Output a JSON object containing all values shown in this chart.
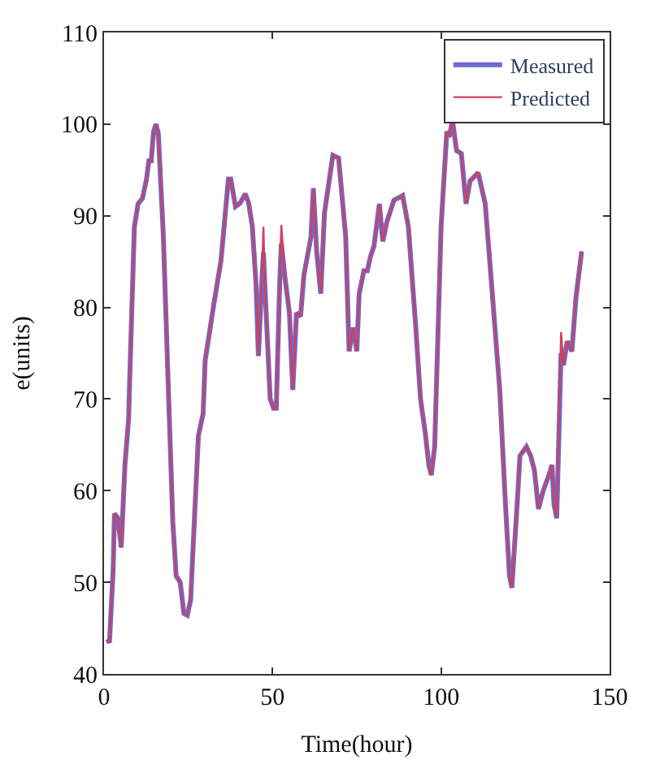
{
  "chart_data": {
    "type": "line",
    "xlabel": "Time(hour)",
    "ylabel": "e(units)",
    "x": [
      1,
      1.6,
      2.7,
      3.1,
      4.1,
      5.1,
      6.2,
      7.3,
      7.6,
      9.0,
      10.1,
      11.4,
      12.6,
      13.3,
      14,
      14.7,
      15.4,
      16.1,
      17.6,
      19,
      20.4,
      21.4,
      22.6,
      23.7,
      24.7,
      25.7,
      26.9,
      28,
      29.4,
      30,
      32.6,
      34.7,
      36.9,
      37.6,
      39,
      40.4,
      41.9,
      42.9,
      44,
      45.1,
      45.8,
      46.7,
      47.3,
      47.7,
      49.3,
      50.3,
      51.1,
      52.1,
      52.6,
      53.6,
      55,
      56,
      57.1,
      58.3,
      59.3,
      61.4,
      62.1,
      63.1,
      64.3,
      65.4,
      67.9,
      69.6,
      71.7,
      72.7,
      73.9,
      75,
      75.7,
      77.1,
      78.1,
      79.1,
      80.1,
      81.7,
      82.7,
      83.9,
      86,
      88.6,
      90.3,
      92.4,
      93.9,
      95.3,
      96.4,
      97.1,
      98.1,
      100,
      101.7,
      102.4,
      103.4,
      104.6,
      106,
      107.4,
      108.6,
      111,
      113.1,
      115.3,
      117.4,
      119.1,
      120.3,
      121,
      122.4,
      123.4,
      125.3,
      126.6,
      127.7,
      128.9,
      130.3,
      132,
      132.9,
      133.5,
      134.3,
      135.6,
      136.3,
      137.4,
      138.8,
      140,
      141.7
    ],
    "series": [
      {
        "name": "Measured",
        "color": "#6b6bd0",
        "values": [
          43.8,
          43.4,
          51.3,
          57.5,
          57,
          53.8,
          62.8,
          67.9,
          72,
          88.8,
          91.3,
          91.9,
          94,
          96,
          96,
          99.2,
          100,
          99,
          87.8,
          72,
          56.6,
          50.7,
          50,
          46.6,
          46.4,
          48.1,
          57.5,
          66,
          68.4,
          74.2,
          80.4,
          85.1,
          94,
          94,
          91,
          91.4,
          92.4,
          91.4,
          88.8,
          82.5,
          74.7,
          82,
          86,
          82.5,
          70,
          69,
          69,
          82.5,
          87,
          83.5,
          79.4,
          71,
          79.4,
          79,
          83.5,
          87.7,
          93,
          86,
          81.5,
          90.3,
          96.6,
          96.3,
          87.7,
          75.2,
          77.8,
          75.2,
          81.5,
          84,
          84,
          85.6,
          86.7,
          91.3,
          87.2,
          89.3,
          91.7,
          92.2,
          88.8,
          78.3,
          70,
          66.3,
          62.7,
          61.7,
          64.8,
          88.8,
          99.2,
          98.6,
          100.4,
          97.1,
          96.8,
          91.3,
          93.8,
          94.7,
          91.3,
          81,
          71,
          58.5,
          50.7,
          49.4,
          57.5,
          63.8,
          64.8,
          63.8,
          62.2,
          58,
          60,
          61.7,
          62.8,
          58.5,
          57,
          75,
          73.7,
          76.3,
          75.2,
          81,
          86.1
        ]
      },
      {
        "name": "Predicted",
        "color": "#d0405a",
        "values": [
          43.8,
          43.4,
          51.3,
          57.5,
          57,
          53.8,
          62.8,
          67.9,
          72,
          88.8,
          91.3,
          91.9,
          94,
          96,
          96,
          99.2,
          100,
          99,
          87.8,
          72,
          56.6,
          50.7,
          50,
          46.6,
          46.4,
          48.1,
          57.5,
          66,
          68.4,
          74.2,
          80.4,
          85.1,
          94,
          94,
          91,
          91.4,
          92.4,
          91.4,
          88.8,
          82.5,
          74.7,
          82,
          88.8,
          82.5,
          70,
          69,
          69,
          82.5,
          89,
          83.5,
          79.4,
          71,
          79.4,
          79,
          83.5,
          87.7,
          93,
          86,
          81.5,
          90.3,
          96.6,
          96.3,
          87.7,
          75.2,
          77.8,
          75.2,
          81.5,
          84,
          84,
          85.6,
          86.7,
          91.3,
          87.2,
          89.3,
          91.7,
          92.2,
          88.8,
          78.3,
          70,
          66.3,
          62.7,
          61.7,
          64.8,
          88.8,
          99.2,
          98.6,
          100.4,
          97.1,
          96.8,
          91.3,
          93.8,
          94.7,
          91.3,
          81,
          71,
          58.5,
          50.7,
          49.4,
          57.5,
          63.8,
          64.8,
          63.8,
          62.2,
          58,
          60,
          61.7,
          62.8,
          58.5,
          57,
          77.3,
          73.7,
          76.3,
          75.2,
          81,
          86.1
        ]
      }
    ],
    "xlim": [
      0,
      150
    ],
    "xticks": [
      0,
      50,
      100,
      150
    ],
    "ylim": [
      40,
      110
    ],
    "yticks": [
      40,
      50,
      60,
      70,
      80,
      90,
      100,
      110
    ],
    "legend": "top right",
    "marker": "none",
    "line_style": "solid"
  }
}
